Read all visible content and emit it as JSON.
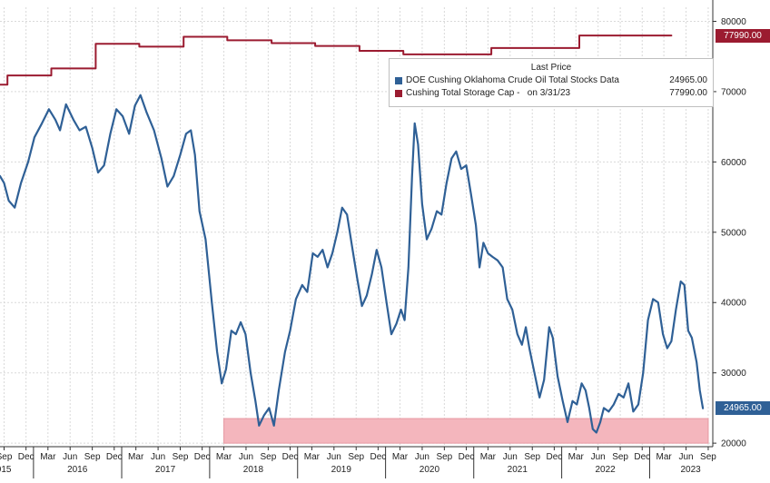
{
  "chart_data": {
    "type": "line",
    "colors": {
      "stocks": "#2f6096",
      "capacity": "#9b1b30",
      "band": "#f4b6bd"
    },
    "y_ticks": [
      20000,
      30000,
      40000,
      50000,
      60000,
      70000,
      80000
    ],
    "ylim": [
      19500,
      82000
    ],
    "xlim": [
      "2015-08-15",
      "2023-09-20"
    ],
    "x_ticks": [
      {
        "date": "2015-09-01",
        "label": "Sep"
      },
      {
        "date": "2015-12-01",
        "label": "Dec"
      },
      {
        "date": "2016-03-01",
        "label": "Mar"
      },
      {
        "date": "2016-06-01",
        "label": "Jun"
      },
      {
        "date": "2016-09-01",
        "label": "Sep"
      },
      {
        "date": "2016-12-01",
        "label": "Dec"
      },
      {
        "date": "2017-03-01",
        "label": "Mar"
      },
      {
        "date": "2017-06-01",
        "label": "Jun"
      },
      {
        "date": "2017-09-01",
        "label": "Sep"
      },
      {
        "date": "2017-12-01",
        "label": "Dec"
      },
      {
        "date": "2018-03-01",
        "label": "Mar"
      },
      {
        "date": "2018-06-01",
        "label": "Jun"
      },
      {
        "date": "2018-09-01",
        "label": "Sep"
      },
      {
        "date": "2018-12-01",
        "label": "Dec"
      },
      {
        "date": "2019-03-01",
        "label": "Mar"
      },
      {
        "date": "2019-06-01",
        "label": "Jun"
      },
      {
        "date": "2019-09-01",
        "label": "Sep"
      },
      {
        "date": "2019-12-01",
        "label": "Dec"
      },
      {
        "date": "2020-03-01",
        "label": "Mar"
      },
      {
        "date": "2020-06-01",
        "label": "Jun"
      },
      {
        "date": "2020-09-01",
        "label": "Sep"
      },
      {
        "date": "2020-12-01",
        "label": "Dec"
      },
      {
        "date": "2021-03-01",
        "label": "Mar"
      },
      {
        "date": "2021-06-01",
        "label": "Jun"
      },
      {
        "date": "2021-09-01",
        "label": "Sep"
      },
      {
        "date": "2021-12-01",
        "label": "Dec"
      },
      {
        "date": "2022-03-01",
        "label": "Mar"
      },
      {
        "date": "2022-06-01",
        "label": "Jun"
      },
      {
        "date": "2022-09-01",
        "label": "Sep"
      },
      {
        "date": "2022-12-01",
        "label": "Dec"
      },
      {
        "date": "2023-03-01",
        "label": "Mar"
      },
      {
        "date": "2023-06-01",
        "label": "Jun"
      },
      {
        "date": "2023-09-01",
        "label": "Sep"
      }
    ],
    "year_labels": [
      {
        "date": "2015-08-20",
        "label": "2015"
      },
      {
        "date": "2016-07-01",
        "label": "2016"
      },
      {
        "date": "2017-07-01",
        "label": "2017"
      },
      {
        "date": "2018-07-01",
        "label": "2018"
      },
      {
        "date": "2019-07-01",
        "label": "2019"
      },
      {
        "date": "2020-07-01",
        "label": "2020"
      },
      {
        "date": "2021-07-01",
        "label": "2021"
      },
      {
        "date": "2022-07-01",
        "label": "2022"
      },
      {
        "date": "2023-06-20",
        "label": "2023"
      }
    ],
    "band": {
      "x0": "2018-03-01",
      "x1": "2023-09-01",
      "y0": 20000,
      "y1": 23500
    },
    "series": [
      {
        "name": "DOE Cushing Oklahoma Crude Oil Total Stocks Data",
        "key": "stocks",
        "last_price": "24965.00",
        "badge": "24965.00",
        "points": [
          [
            "2015-08-15",
            58000
          ],
          [
            "2015-09-01",
            57000
          ],
          [
            "2015-09-20",
            54500
          ],
          [
            "2015-10-15",
            53500
          ],
          [
            "2015-11-10",
            57000
          ],
          [
            "2015-12-10",
            60000
          ],
          [
            "2016-01-05",
            63500
          ],
          [
            "2016-02-05",
            65500
          ],
          [
            "2016-03-05",
            67500
          ],
          [
            "2016-04-01",
            66000
          ],
          [
            "2016-04-20",
            64500
          ],
          [
            "2016-05-15",
            68200
          ],
          [
            "2016-06-15",
            66000
          ],
          [
            "2016-07-10",
            64500
          ],
          [
            "2016-08-05",
            65000
          ],
          [
            "2016-09-01",
            62000
          ],
          [
            "2016-09-25",
            58500
          ],
          [
            "2016-10-20",
            59500
          ],
          [
            "2016-11-15",
            64000
          ],
          [
            "2016-12-10",
            67500
          ],
          [
            "2017-01-05",
            66500
          ],
          [
            "2017-02-01",
            64000
          ],
          [
            "2017-02-25",
            68000
          ],
          [
            "2017-03-20",
            69500
          ],
          [
            "2017-04-15",
            67000
          ],
          [
            "2017-05-15",
            64500
          ],
          [
            "2017-06-15",
            60500
          ],
          [
            "2017-07-10",
            56500
          ],
          [
            "2017-08-05",
            58000
          ],
          [
            "2017-09-01",
            61000
          ],
          [
            "2017-09-25",
            64000
          ],
          [
            "2017-10-15",
            64500
          ],
          [
            "2017-11-01",
            61000
          ],
          [
            "2017-11-20",
            53000
          ],
          [
            "2017-12-15",
            49000
          ],
          [
            "2018-01-10",
            40000
          ],
          [
            "2018-02-01",
            33000
          ],
          [
            "2018-02-20",
            28500
          ],
          [
            "2018-03-10",
            30500
          ],
          [
            "2018-04-01",
            36000
          ],
          [
            "2018-04-20",
            35500
          ],
          [
            "2018-05-10",
            37200
          ],
          [
            "2018-05-30",
            35500
          ],
          [
            "2018-06-20",
            30000
          ],
          [
            "2018-07-10",
            26000
          ],
          [
            "2018-07-25",
            22500
          ],
          [
            "2018-08-15",
            24000
          ],
          [
            "2018-09-05",
            25000
          ],
          [
            "2018-09-25",
            22500
          ],
          [
            "2018-10-15",
            27500
          ],
          [
            "2018-11-10",
            33000
          ],
          [
            "2018-12-01",
            36000
          ],
          [
            "2018-12-25",
            40500
          ],
          [
            "2019-01-20",
            42500
          ],
          [
            "2019-02-10",
            41500
          ],
          [
            "2019-03-05",
            47000
          ],
          [
            "2019-03-25",
            46500
          ],
          [
            "2019-04-15",
            47500
          ],
          [
            "2019-05-05",
            45000
          ],
          [
            "2019-05-25",
            47000
          ],
          [
            "2019-06-15",
            50000
          ],
          [
            "2019-07-05",
            53500
          ],
          [
            "2019-07-25",
            52500
          ],
          [
            "2019-08-15",
            48000
          ],
          [
            "2019-09-05",
            43500
          ],
          [
            "2019-09-25",
            39500
          ],
          [
            "2019-10-15",
            41000
          ],
          [
            "2019-11-05",
            44000
          ],
          [
            "2019-11-25",
            47500
          ],
          [
            "2019-12-15",
            45000
          ],
          [
            "2020-01-05",
            40000
          ],
          [
            "2020-01-25",
            35500
          ],
          [
            "2020-02-15",
            37000
          ],
          [
            "2020-03-05",
            39000
          ],
          [
            "2020-03-20",
            37500
          ],
          [
            "2020-04-05",
            45000
          ],
          [
            "2020-04-20",
            58000
          ],
          [
            "2020-05-01",
            65500
          ],
          [
            "2020-05-15",
            62500
          ],
          [
            "2020-06-01",
            54000
          ],
          [
            "2020-06-20",
            49000
          ],
          [
            "2020-07-10",
            50500
          ],
          [
            "2020-08-01",
            53000
          ],
          [
            "2020-08-20",
            52500
          ],
          [
            "2020-09-10",
            57000
          ],
          [
            "2020-10-01",
            60500
          ],
          [
            "2020-10-20",
            61500
          ],
          [
            "2020-11-10",
            59000
          ],
          [
            "2020-12-01",
            59500
          ],
          [
            "2020-12-20",
            55500
          ],
          [
            "2021-01-10",
            51000
          ],
          [
            "2021-01-25",
            45000
          ],
          [
            "2021-02-10",
            48500
          ],
          [
            "2021-03-01",
            47000
          ],
          [
            "2021-03-20",
            46500
          ],
          [
            "2021-04-10",
            46000
          ],
          [
            "2021-05-01",
            45000
          ],
          [
            "2021-05-20",
            40500
          ],
          [
            "2021-06-10",
            39000
          ],
          [
            "2021-07-01",
            35500
          ],
          [
            "2021-07-20",
            34000
          ],
          [
            "2021-08-05",
            36500
          ],
          [
            "2021-08-20",
            33500
          ],
          [
            "2021-09-10",
            30000
          ],
          [
            "2021-10-01",
            26500
          ],
          [
            "2021-10-20",
            29000
          ],
          [
            "2021-11-10",
            36500
          ],
          [
            "2021-11-25",
            35000
          ],
          [
            "2021-12-15",
            29500
          ],
          [
            "2022-01-05",
            26000
          ],
          [
            "2022-01-25",
            23000
          ],
          [
            "2022-02-15",
            26000
          ],
          [
            "2022-03-05",
            25500
          ],
          [
            "2022-03-25",
            28500
          ],
          [
            "2022-04-10",
            27500
          ],
          [
            "2022-04-25",
            25000
          ],
          [
            "2022-05-10",
            22000
          ],
          [
            "2022-05-25",
            21500
          ],
          [
            "2022-06-10",
            23000
          ],
          [
            "2022-06-25",
            25000
          ],
          [
            "2022-07-15",
            24500
          ],
          [
            "2022-08-05",
            25500
          ],
          [
            "2022-08-25",
            27000
          ],
          [
            "2022-09-15",
            26500
          ],
          [
            "2022-10-05",
            28500
          ],
          [
            "2022-10-25",
            24500
          ],
          [
            "2022-11-15",
            25500
          ],
          [
            "2022-12-05",
            30000
          ],
          [
            "2022-12-25",
            37500
          ],
          [
            "2023-01-15",
            40500
          ],
          [
            "2023-02-05",
            40000
          ],
          [
            "2023-02-25",
            35500
          ],
          [
            "2023-03-15",
            33500
          ],
          [
            "2023-04-01",
            34500
          ],
          [
            "2023-04-20",
            39000
          ],
          [
            "2023-05-10",
            43000
          ],
          [
            "2023-05-25",
            42500
          ],
          [
            "2023-06-10",
            36000
          ],
          [
            "2023-06-25",
            35000
          ],
          [
            "2023-07-15",
            31500
          ],
          [
            "2023-07-28",
            27500
          ],
          [
            "2023-08-10",
            24965
          ]
        ]
      },
      {
        "name": "Cushing Total Storage Cap",
        "name_suffix": "on 3/31/23",
        "key": "capacity",
        "last_price": "77990.00",
        "badge": "77990.00",
        "points": [
          [
            "2015-08-15",
            71000
          ],
          [
            "2015-09-15",
            71000
          ],
          [
            "2015-09-15",
            72300
          ],
          [
            "2016-03-15",
            72300
          ],
          [
            "2016-03-15",
            73300
          ],
          [
            "2016-09-15",
            73300
          ],
          [
            "2016-09-15",
            76800
          ],
          [
            "2017-03-15",
            76800
          ],
          [
            "2017-03-15",
            76400
          ],
          [
            "2017-09-15",
            76400
          ],
          [
            "2017-09-15",
            77800
          ],
          [
            "2018-03-15",
            77800
          ],
          [
            "2018-03-15",
            77300
          ],
          [
            "2018-09-15",
            77300
          ],
          [
            "2018-09-15",
            76900
          ],
          [
            "2019-03-15",
            76900
          ],
          [
            "2019-03-15",
            76500
          ],
          [
            "2019-09-15",
            76500
          ],
          [
            "2019-09-15",
            75800
          ],
          [
            "2020-03-15",
            75800
          ],
          [
            "2020-03-15",
            75300
          ],
          [
            "2021-03-15",
            75300
          ],
          [
            "2021-03-15",
            76200
          ],
          [
            "2022-03-15",
            76200
          ],
          [
            "2022-03-15",
            77990
          ],
          [
            "2023-04-01",
            77990
          ]
        ]
      }
    ],
    "legend": {
      "title": "Last Price",
      "placement": "top-right"
    }
  }
}
